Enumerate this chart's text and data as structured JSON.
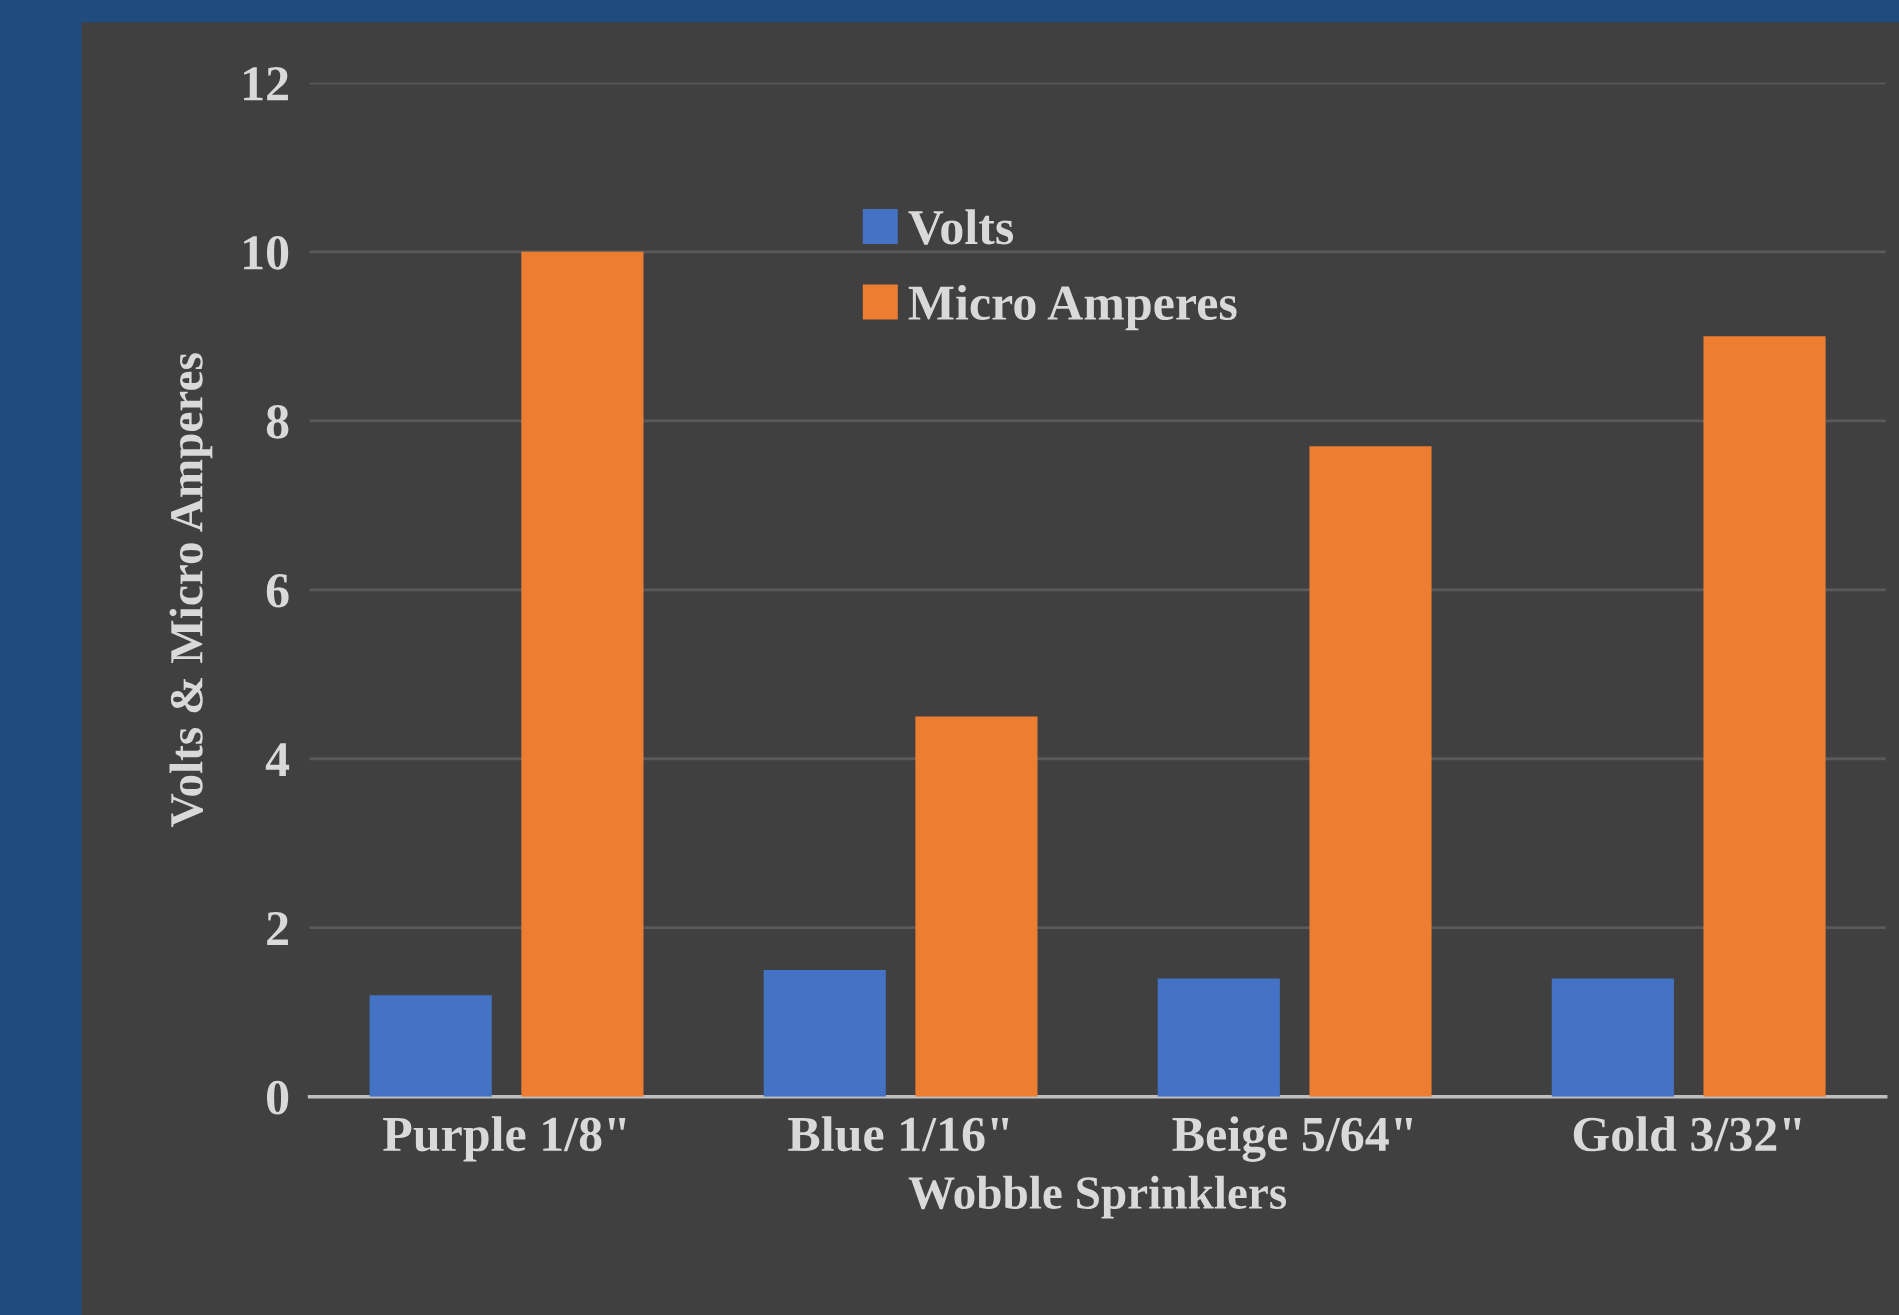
{
  "chart_data": {
    "type": "bar",
    "xlabel": "Wobble Sprinklers",
    "ylabel": "Volts & Micro Amperes",
    "categories": [
      "Purple 1/8\"",
      "Blue 1/16\"",
      "Beige 5/64\"",
      "Gold 3/32\""
    ],
    "series": [
      {
        "name": "Volts",
        "color": "#4472c4",
        "values": [
          1.2,
          1.5,
          1.4,
          1.4
        ]
      },
      {
        "name": "Micro Amperes",
        "color": "#ed7d31",
        "values": [
          10,
          4.5,
          7.7,
          9
        ]
      }
    ],
    "ylim": [
      0,
      12
    ],
    "yticks": [
      0,
      2,
      4,
      6,
      8,
      10,
      12
    ],
    "grid": "y",
    "legend": "top"
  }
}
